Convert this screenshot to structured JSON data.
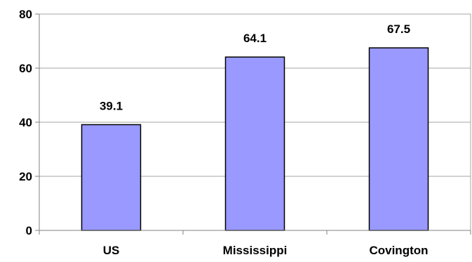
{
  "chart_data": {
    "type": "bar",
    "categories": [
      "US",
      "Mississippi",
      "Covington"
    ],
    "values": [
      39.1,
      64.1,
      67.5
    ],
    "data_labels": [
      "39.1",
      "64.1",
      "67.5"
    ],
    "yticks": [
      "0",
      "20",
      "40",
      "60",
      "80"
    ],
    "ylim": [
      0,
      80
    ],
    "grid": true,
    "bar_color": "#9999ff",
    "bar_edge_color": "#000000",
    "grid_color": "#a6a6a6"
  }
}
